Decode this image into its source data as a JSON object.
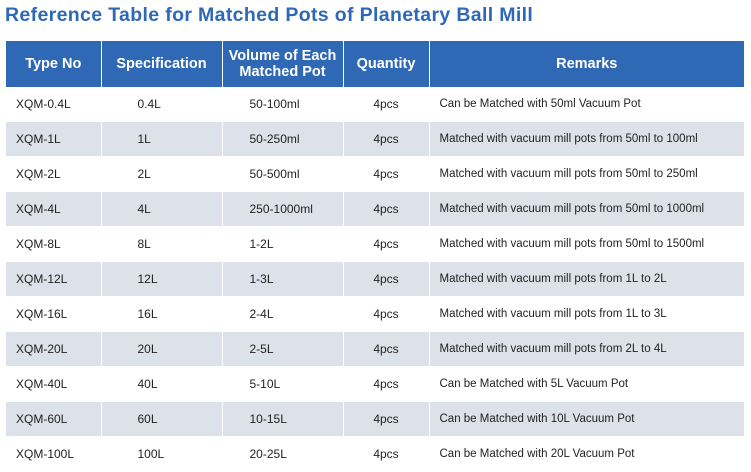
{
  "title": "Reference Table for Matched Pots of Planetary Ball Mill",
  "colors": {
    "header_bg": "#2f68b4",
    "title_text": "#2f68b4",
    "stripe_row": "#dde1ea"
  },
  "table": {
    "headers": {
      "type_no": "Type No",
      "specification": "Specification",
      "volume": "Volume of Each Matched Pot",
      "quantity": "Quantity",
      "remarks": "Remarks"
    },
    "rows": [
      {
        "type_no": "XQM-0.4L",
        "specification": "0.4L",
        "volume": "50-100ml",
        "quantity": "4pcs",
        "remarks": "Can be Matched with 50ml Vacuum Pot"
      },
      {
        "type_no": "XQM-1L",
        "specification": "1L",
        "volume": "50-250ml",
        "quantity": "4pcs",
        "remarks": "Matched with vacuum mill pots from 50ml to 100ml"
      },
      {
        "type_no": "XQM-2L",
        "specification": "2L",
        "volume": "50-500ml",
        "quantity": "4pcs",
        "remarks": "Matched with vacuum mill pots from 50ml to 250ml"
      },
      {
        "type_no": "XQM-4L",
        "specification": "4L",
        "volume": "250-1000ml",
        "quantity": "4pcs",
        "remarks": "Matched with vacuum mill pots from 50ml to 1000ml"
      },
      {
        "type_no": "XQM-8L",
        "specification": "8L",
        "volume": "1-2L",
        "quantity": "4pcs",
        "remarks": "Matched with vacuum mill pots from 50ml to 1500ml"
      },
      {
        "type_no": "XQM-12L",
        "specification": "12L",
        "volume": "1-3L",
        "quantity": "4pcs",
        "remarks": "Matched with vacuum mill pots from 1L to 2L"
      },
      {
        "type_no": "XQM-16L",
        "specification": "16L",
        "volume": "2-4L",
        "quantity": "4pcs",
        "remarks": "Matched with vacuum mill pots from 1L to 3L"
      },
      {
        "type_no": "XQM-20L",
        "specification": "20L",
        "volume": "2-5L",
        "quantity": "4pcs",
        "remarks": "Matched with vacuum mill pots from 2L to 4L"
      },
      {
        "type_no": "XQM-40L",
        "specification": "40L",
        "volume": "5-10L",
        "quantity": "4pcs",
        "remarks": "Can be Matched with 5L Vacuum Pot"
      },
      {
        "type_no": "XQM-60L",
        "specification": "60L",
        "volume": "10-15L",
        "quantity": "4pcs",
        "remarks": "Can be Matched with 10L Vacuum Pot"
      },
      {
        "type_no": "XQM-100L",
        "specification": "100L",
        "volume": "20-25L",
        "quantity": "4pcs",
        "remarks": "Can be Matched with 20L Vacuum Pot"
      }
    ]
  }
}
